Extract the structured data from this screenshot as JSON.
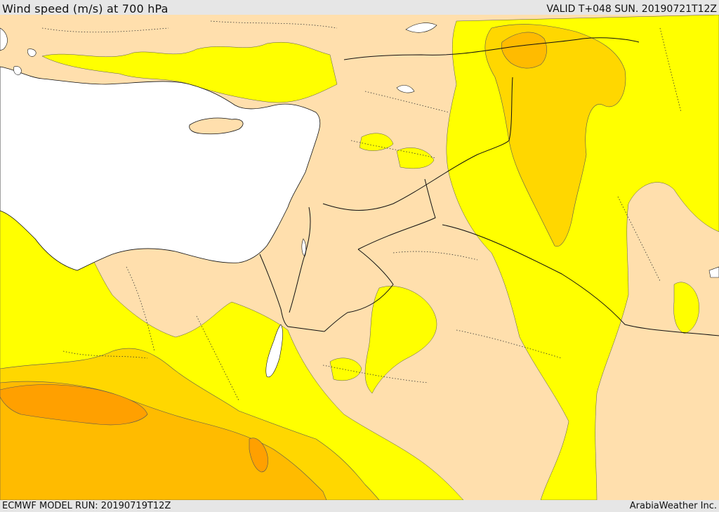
{
  "header": {
    "title": "Wind speed (m/s) at 700 hPa",
    "valid_time": "VALID T+048 SUN. 20190721T12Z"
  },
  "footer": {
    "model_run": "ECMWF MODEL RUN: 20190719T12Z",
    "credit": "ArabiaWeather Inc."
  },
  "map": {
    "colors": {
      "land_base": "#ffdfad",
      "sea": "#ffffff",
      "band_10_15": "#ffff00",
      "band_15_20": "#ffd700",
      "band_20_25": "#ffbb00",
      "band_25_30": "#ffa000",
      "border": "#111111",
      "admin_border": "#333333"
    }
  }
}
